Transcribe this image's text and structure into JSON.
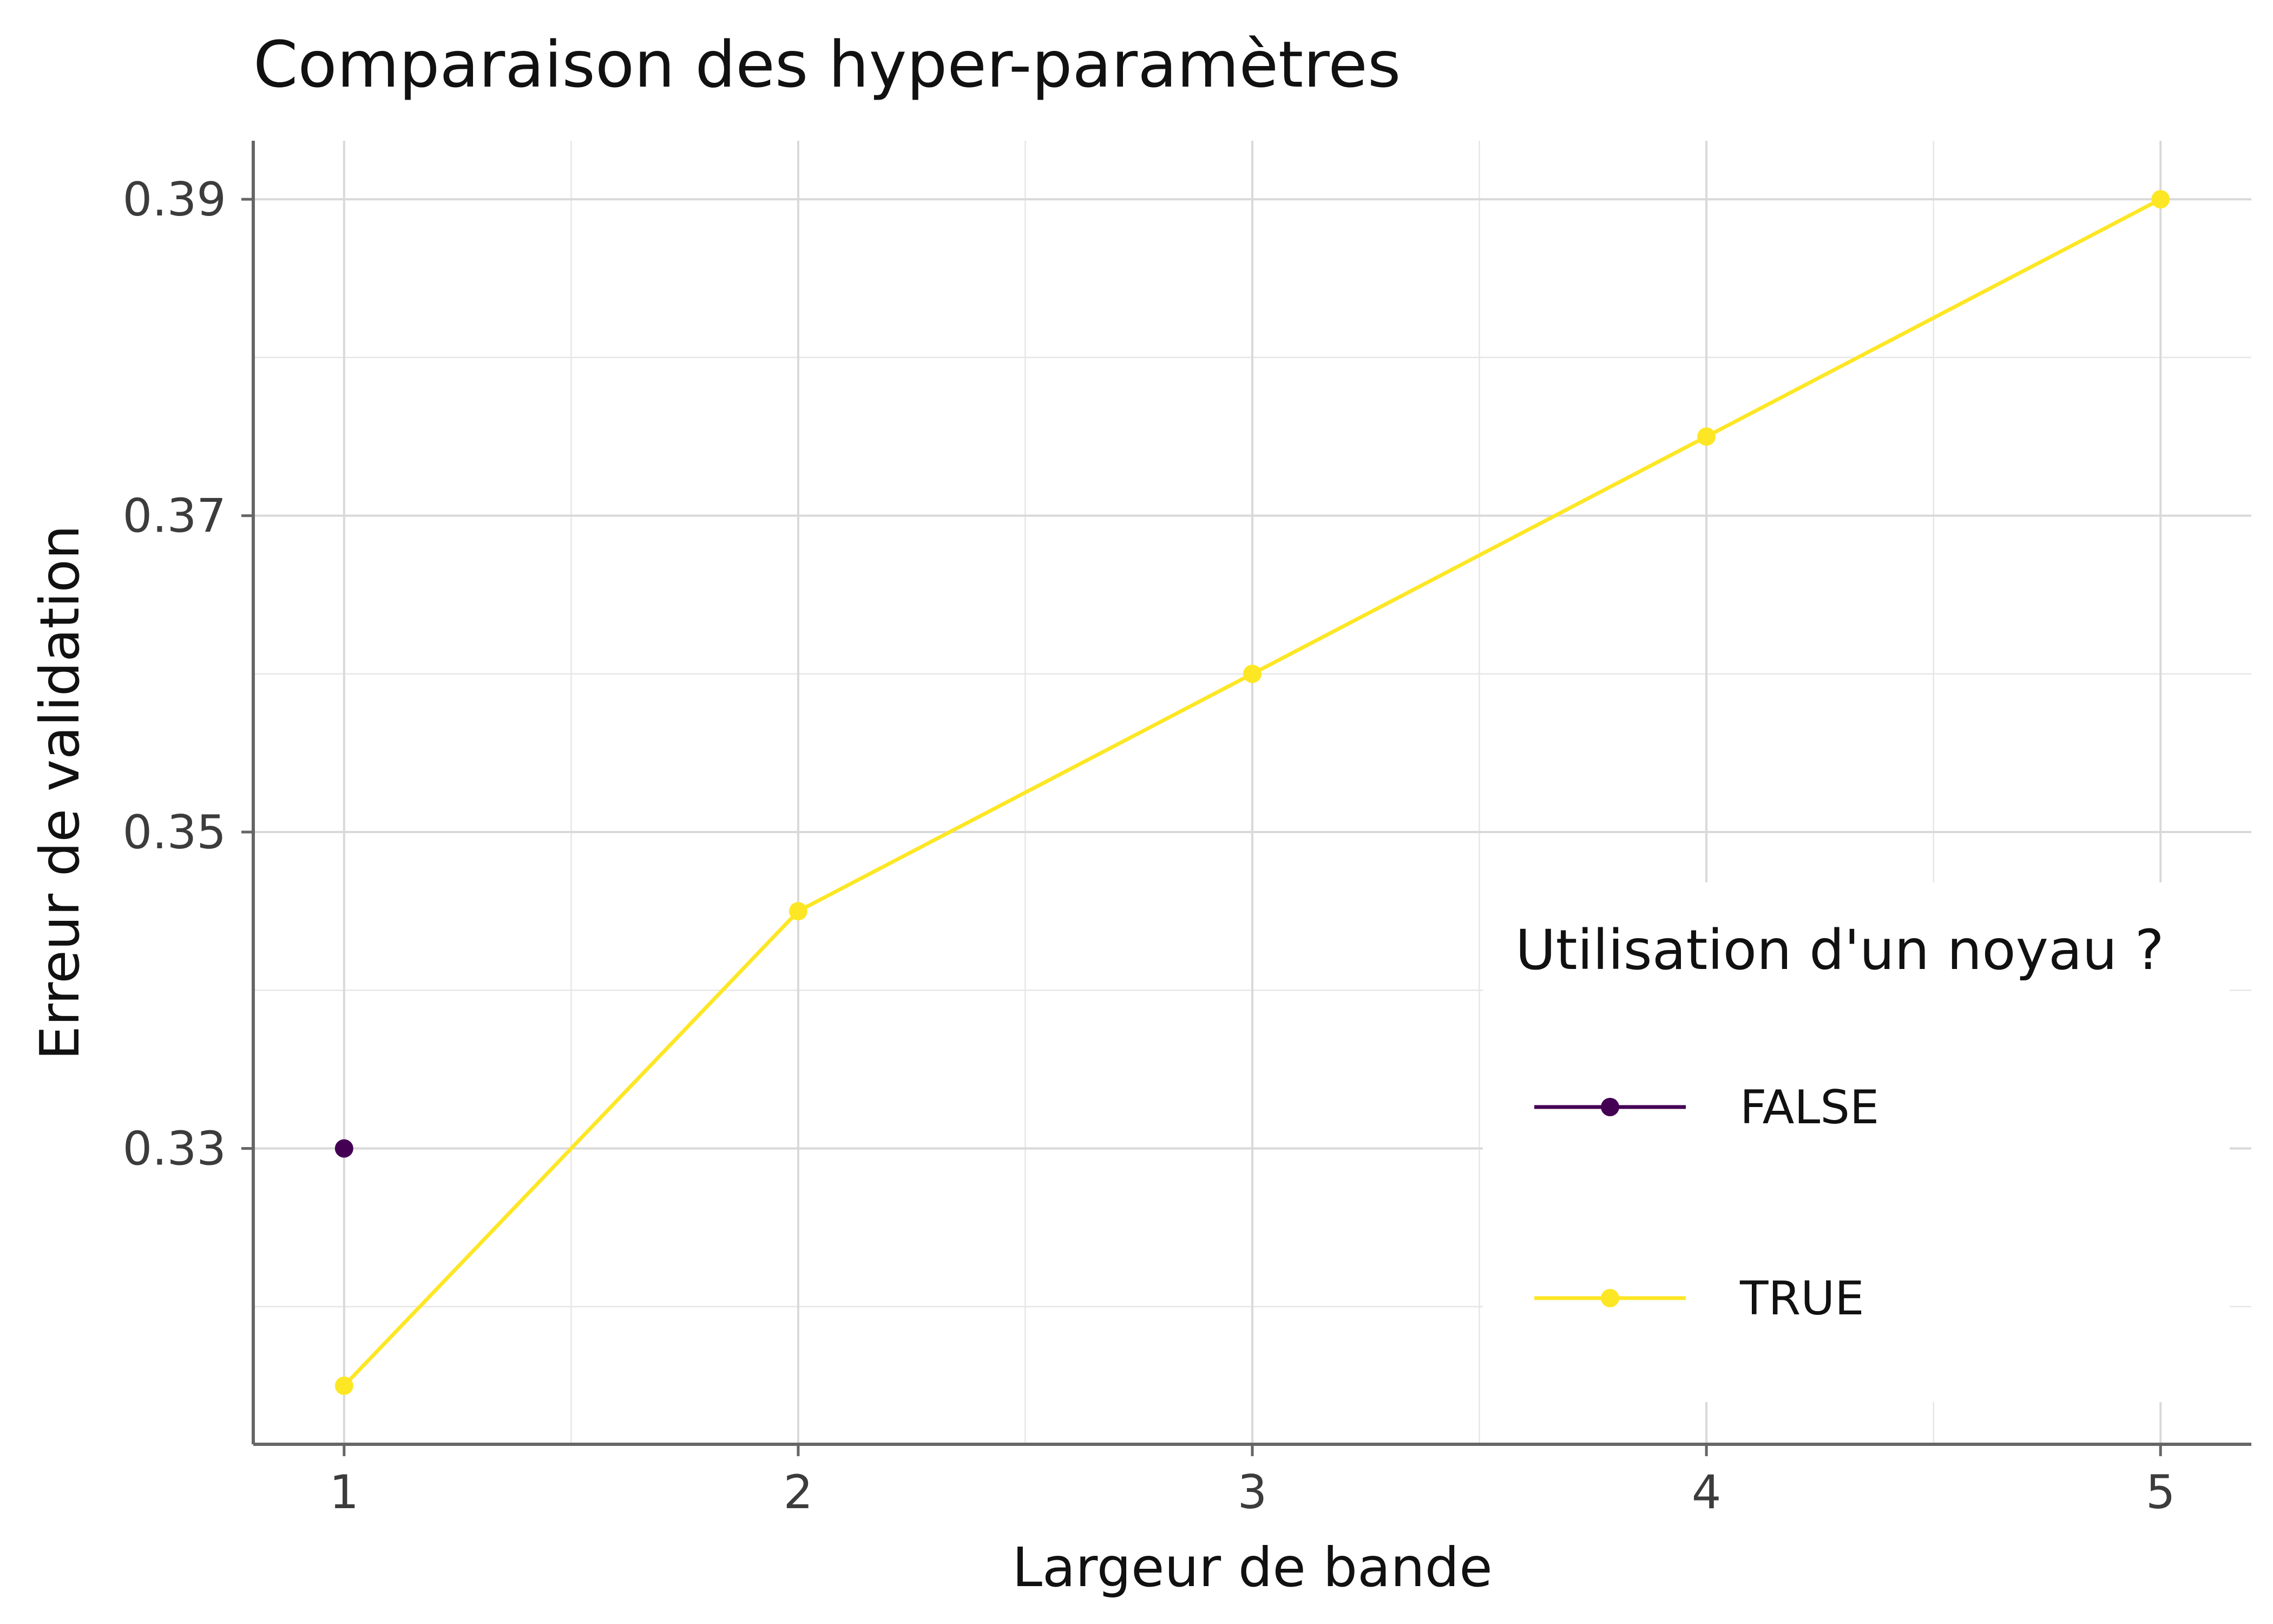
{
  "chart_data": {
    "type": "line",
    "title": "Comparaison des hyper-paramètres",
    "xlabel": "Largeur de bande",
    "ylabel": "Erreur de validation",
    "x_ticks": [
      1,
      2,
      3,
      4,
      5
    ],
    "x_tick_labels": [
      "1",
      "2",
      "3",
      "4",
      "5"
    ],
    "y_ticks": [
      0.33,
      0.35,
      0.37,
      0.39
    ],
    "y_tick_labels": [
      "0.33",
      "0.35",
      "0.37",
      "0.39"
    ],
    "xlim": [
      0.8,
      5.2
    ],
    "ylim": [
      0.3113,
      0.3937
    ],
    "grid": true,
    "legend": {
      "title": "Utilisation d'un noyau ?",
      "position": "bottom-right"
    },
    "series": [
      {
        "name": "FALSE",
        "color": "#440154",
        "points": [
          {
            "x": 1,
            "y": 0.33
          }
        ]
      },
      {
        "name": "TRUE",
        "color": "#FDE725",
        "points": [
          {
            "x": 1,
            "y": 0.315
          },
          {
            "x": 2,
            "y": 0.345
          },
          {
            "x": 3,
            "y": 0.36
          },
          {
            "x": 4,
            "y": 0.375
          },
          {
            "x": 5,
            "y": 0.39
          }
        ]
      }
    ]
  }
}
